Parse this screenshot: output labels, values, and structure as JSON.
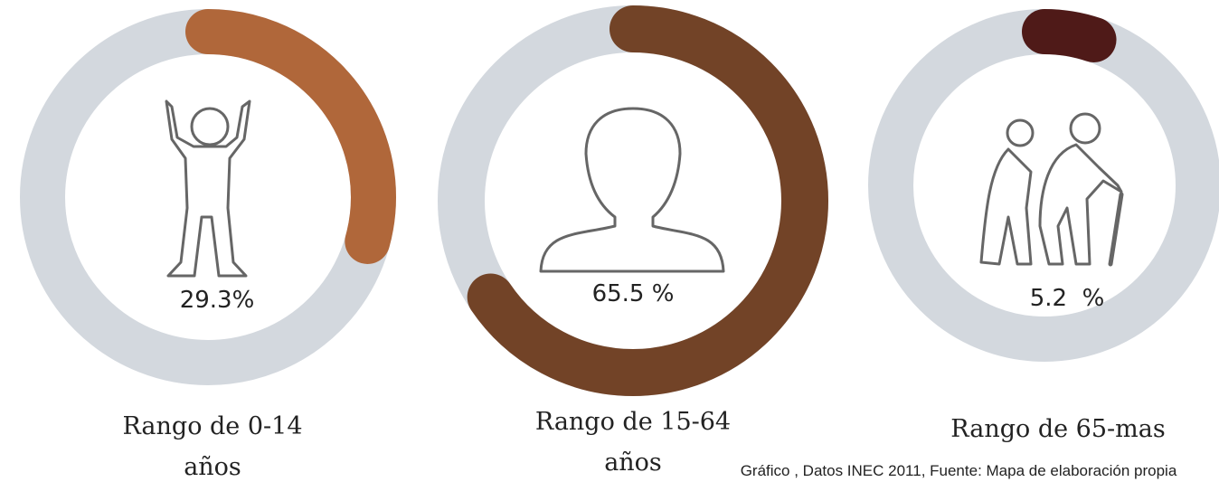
{
  "chart_data": [
    {
      "type": "donut",
      "value": 29.3,
      "value_label": "29.3%",
      "label": [
        "Rango de 0-14",
        "años"
      ],
      "color": "#b0673a",
      "track_color": "#d3d8de"
    },
    {
      "type": "donut",
      "value": 65.5,
      "value_label": "65.5 %",
      "label": [
        "Rango de 15-64",
        "años"
      ],
      "color": "#724327",
      "track_color": "#d3d8de"
    },
    {
      "type": "donut",
      "value": 5.2,
      "value_label": "5.2  %",
      "label": [
        "Rango de 65-mas"
      ],
      "color": "#4f1a18",
      "track_color": "#d3d8de"
    }
  ],
  "note": "Gráfico , Datos INEC 2011, Fuente: Mapa de elaboración propia"
}
